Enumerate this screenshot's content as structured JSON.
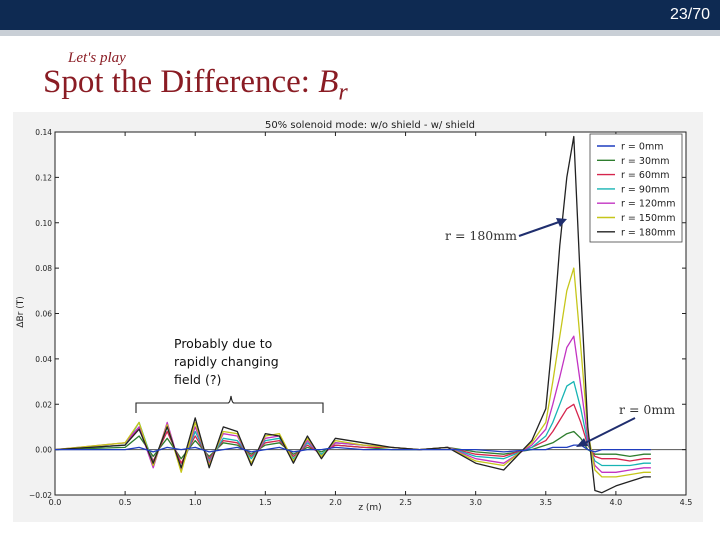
{
  "header": {
    "slide_number": "23/70",
    "subtitle": "Let's play",
    "title_main": "Spot the Difference: ",
    "title_var": "B",
    "title_sub": "r"
  },
  "annotations": {
    "probable_cause_line1": "Probably due to",
    "probable_cause_line2": "rapidly changing",
    "probable_cause_line3": "field (?)",
    "r180_label": "r = 180mm",
    "r0_label": "r = 0mm"
  },
  "colors": {
    "header_bg": "#0e2a52",
    "title": "#8a1c24",
    "arrow": "#1f2e6e"
  },
  "chart_data": {
    "type": "line",
    "title": "50% solenoid mode: w/o shield - w/ shield",
    "xlabel": "z (m)",
    "ylabel": "ΔBr (T)",
    "xlim": [
      0.0,
      4.5
    ],
    "ylim": [
      -0.02,
      0.14
    ],
    "xticks": [
      0.0,
      0.5,
      1.0,
      1.5,
      2.0,
      2.5,
      3.0,
      3.5,
      4.0,
      4.5
    ],
    "yticks": [
      -0.02,
      0.0,
      0.02,
      0.04,
      0.06,
      0.08,
      0.1,
      0.12,
      0.14
    ],
    "xtick_labels": [
      "0.0",
      "0.5",
      "1.0",
      "1.5",
      "2.0",
      "2.5",
      "3.0",
      "3.5",
      "4.0",
      "4.5"
    ],
    "ytick_labels": [
      "−0.02",
      "0.00",
      "0.02",
      "0.04",
      "0.06",
      "0.08",
      "0.10",
      "0.12",
      "0.14"
    ],
    "legend_position": "top-right",
    "grid": false,
    "x": [
      0.0,
      0.5,
      0.6,
      0.7,
      0.8,
      0.9,
      1.0,
      1.1,
      1.2,
      1.3,
      1.4,
      1.5,
      1.6,
      1.7,
      1.8,
      1.9,
      2.0,
      2.2,
      2.4,
      2.6,
      2.8,
      3.0,
      3.2,
      3.4,
      3.5,
      3.55,
      3.6,
      3.65,
      3.7,
      3.75,
      3.8,
      3.85,
      3.9,
      4.0,
      4.1,
      4.2,
      4.25
    ],
    "series": [
      {
        "name": "r = 0mm",
        "color": "#1f3dbf",
        "values": [
          0.0,
          0.0,
          0.001,
          -0.001,
          0.001,
          0.0,
          0.001,
          -0.001,
          0.0,
          0.001,
          -0.001,
          0.0,
          0.001,
          -0.001,
          0.0,
          0.0,
          0.001,
          0.0,
          0.0,
          0.0,
          0.0,
          0.0,
          -0.001,
          0.0,
          0.0,
          0.001,
          0.001,
          0.001,
          0.002,
          0.002,
          0.0,
          -0.001,
          0.0,
          0.0,
          0.0,
          0.0,
          0.0
        ]
      },
      {
        "name": "r = 30mm",
        "color": "#2e7d2e",
        "values": [
          0.0,
          0.001,
          0.006,
          -0.003,
          0.005,
          -0.004,
          0.004,
          -0.003,
          0.003,
          0.002,
          -0.002,
          0.002,
          0.003,
          -0.002,
          0.001,
          -0.001,
          0.002,
          0.001,
          0.0,
          0.0,
          0.001,
          -0.001,
          -0.002,
          0.0,
          0.002,
          0.003,
          0.005,
          0.007,
          0.008,
          0.005,
          0.0,
          -0.002,
          -0.002,
          -0.002,
          -0.003,
          -0.002,
          -0.002
        ]
      },
      {
        "name": "r = 60mm",
        "color": "#d6254d",
        "values": [
          0.0,
          0.002,
          0.01,
          -0.005,
          0.008,
          -0.006,
          0.006,
          -0.004,
          0.004,
          0.003,
          -0.003,
          0.003,
          0.004,
          -0.003,
          0.002,
          -0.002,
          0.002,
          0.001,
          0.001,
          0.0,
          0.001,
          -0.002,
          -0.003,
          0.001,
          0.004,
          0.008,
          0.013,
          0.018,
          0.02,
          0.012,
          0.002,
          -0.003,
          -0.004,
          -0.004,
          -0.005,
          -0.004,
          -0.004
        ]
      },
      {
        "name": "r = 90mm",
        "color": "#17b4b4",
        "values": [
          0.0,
          0.002,
          0.012,
          -0.006,
          0.01,
          -0.008,
          0.008,
          -0.005,
          0.005,
          0.004,
          -0.004,
          0.004,
          0.005,
          -0.004,
          0.003,
          -0.002,
          0.003,
          0.002,
          0.001,
          0.0,
          0.001,
          -0.003,
          -0.004,
          0.001,
          0.006,
          0.012,
          0.02,
          0.028,
          0.03,
          0.018,
          0.003,
          -0.005,
          -0.007,
          -0.007,
          -0.007,
          -0.006,
          -0.006
        ]
      },
      {
        "name": "r = 120mm",
        "color": "#c233c2",
        "values": [
          0.0,
          0.003,
          0.01,
          -0.008,
          0.012,
          -0.009,
          0.01,
          -0.006,
          0.007,
          0.006,
          -0.006,
          0.005,
          0.006,
          -0.005,
          0.004,
          -0.003,
          0.003,
          0.002,
          0.001,
          0.0,
          0.001,
          -0.004,
          -0.006,
          0.002,
          0.009,
          0.02,
          0.032,
          0.045,
          0.05,
          0.028,
          0.005,
          -0.007,
          -0.01,
          -0.01,
          -0.009,
          -0.008,
          -0.008
        ]
      },
      {
        "name": "r = 150mm",
        "color": "#c6c61a",
        "values": [
          0.0,
          0.003,
          0.012,
          -0.007,
          0.011,
          -0.01,
          0.012,
          -0.007,
          0.008,
          0.007,
          -0.006,
          0.006,
          0.007,
          -0.005,
          0.005,
          -0.003,
          0.004,
          0.002,
          0.001,
          0.0,
          0.001,
          -0.005,
          -0.007,
          0.003,
          0.012,
          0.03,
          0.05,
          0.07,
          0.08,
          0.045,
          0.008,
          -0.009,
          -0.012,
          -0.012,
          -0.011,
          -0.01,
          -0.01
        ]
      },
      {
        "name": "r = 180mm",
        "color": "#222222",
        "values": [
          0.0,
          0.002,
          0.009,
          -0.006,
          0.01,
          -0.008,
          0.014,
          -0.008,
          0.01,
          0.008,
          -0.007,
          0.007,
          0.006,
          -0.006,
          0.006,
          -0.004,
          0.005,
          0.003,
          0.001,
          0.0,
          0.001,
          -0.006,
          -0.009,
          0.004,
          0.018,
          0.05,
          0.09,
          0.12,
          0.138,
          0.07,
          0.01,
          -0.018,
          -0.019,
          -0.016,
          -0.014,
          -0.012,
          -0.012
        ]
      }
    ]
  }
}
